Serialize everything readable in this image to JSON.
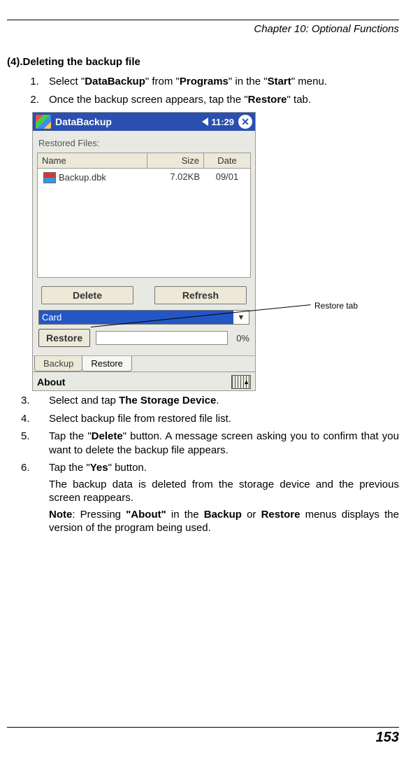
{
  "header": {
    "chapter": "Chapter 10: Optional Functions"
  },
  "section": {
    "title": "(4).Deleting the backup file"
  },
  "steps_a": [
    "Select \"<b>DataBackup</b>\" from \"<b>Programs</b>\" in the \"<b>Start</b>\" menu.",
    "Once the backup screen appears, tap the \"<b>Restore</b>\" tab."
  ],
  "screenshot": {
    "titlebar": {
      "title": "DataBackup",
      "time": "11:29",
      "close": "✕"
    },
    "restored_label": "Restored Files:",
    "columns": {
      "name": "Name",
      "size": "Size",
      "date": "Date"
    },
    "row": {
      "file": "Backup.dbk",
      "size": "7.02KB",
      "date": "09/01"
    },
    "buttons": {
      "delete": "Delete",
      "refresh": "Refresh"
    },
    "combo": {
      "value": "Card",
      "arrow": "▼"
    },
    "restore": {
      "btn": "Restore",
      "pct": "0%"
    },
    "tabs": {
      "backup": "Backup",
      "restore": "Restore"
    },
    "menubar": {
      "about": "About",
      "kb_arrow": "▲"
    }
  },
  "callout": {
    "label": "Restore tab"
  },
  "steps_b": [
    "Select and tap <b>The Storage Device</b>.",
    "Select backup file from restored file list.",
    "Tap the \"<b>Delete</b>\" button. A message screen asking you to confirm that you want to delete the backup file appears.",
    "Tap the \"<b>Yes</b>\" button."
  ],
  "tail": {
    "p1": "The backup data is deleted from the storage device and the previous screen reappears.",
    "p2": "<b>Note</b>: Pressing <b>\"About\"</b> in the <b>Backup</b> or <b>Restore</b> menus displays the version of the program being used."
  },
  "page_number": "153"
}
